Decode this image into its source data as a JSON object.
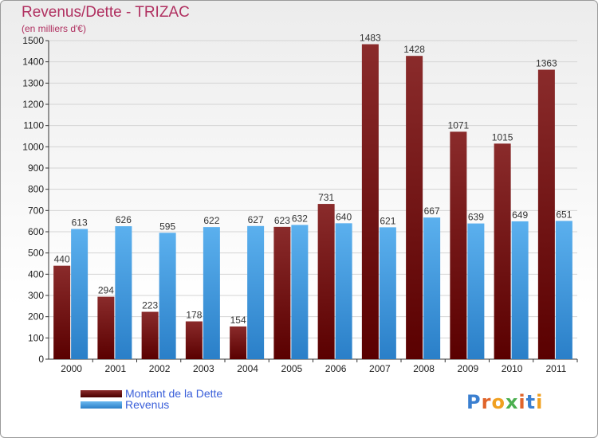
{
  "header": {
    "title": "Revenus/Dette - TRIZAC",
    "subtitle": "(en milliers d'€)"
  },
  "logo": {
    "text": "Proxiti"
  },
  "colors": {
    "debt": "#7a1c1c",
    "revenue": "#4aa3e6",
    "title": "#b03060",
    "legend_text": "#3a5fd9"
  },
  "chart_data": {
    "type": "bar",
    "title": "Revenus/Dette - TRIZAC",
    "subtitle": "(en milliers d'€)",
    "xlabel": "",
    "ylabel": "",
    "ylim": [
      0,
      1500
    ],
    "yticks": [
      0,
      100,
      200,
      300,
      400,
      500,
      600,
      700,
      800,
      900,
      1000,
      1100,
      1200,
      1300,
      1400,
      1500
    ],
    "grid": true,
    "legend_position": "bottom-left",
    "categories": [
      "2000",
      "2001",
      "2002",
      "2003",
      "2004",
      "2005",
      "2006",
      "2007",
      "2008",
      "2009",
      "2010",
      "2011"
    ],
    "series": [
      {
        "name": "Montant de la Dette",
        "values": [
          440,
          294,
          223,
          178,
          154,
          623,
          731,
          1483,
          1428,
          1071,
          1015,
          1363
        ]
      },
      {
        "name": "Revenus",
        "values": [
          613,
          626,
          595,
          622,
          627,
          632,
          640,
          621,
          667,
          639,
          649,
          651
        ]
      }
    ]
  }
}
